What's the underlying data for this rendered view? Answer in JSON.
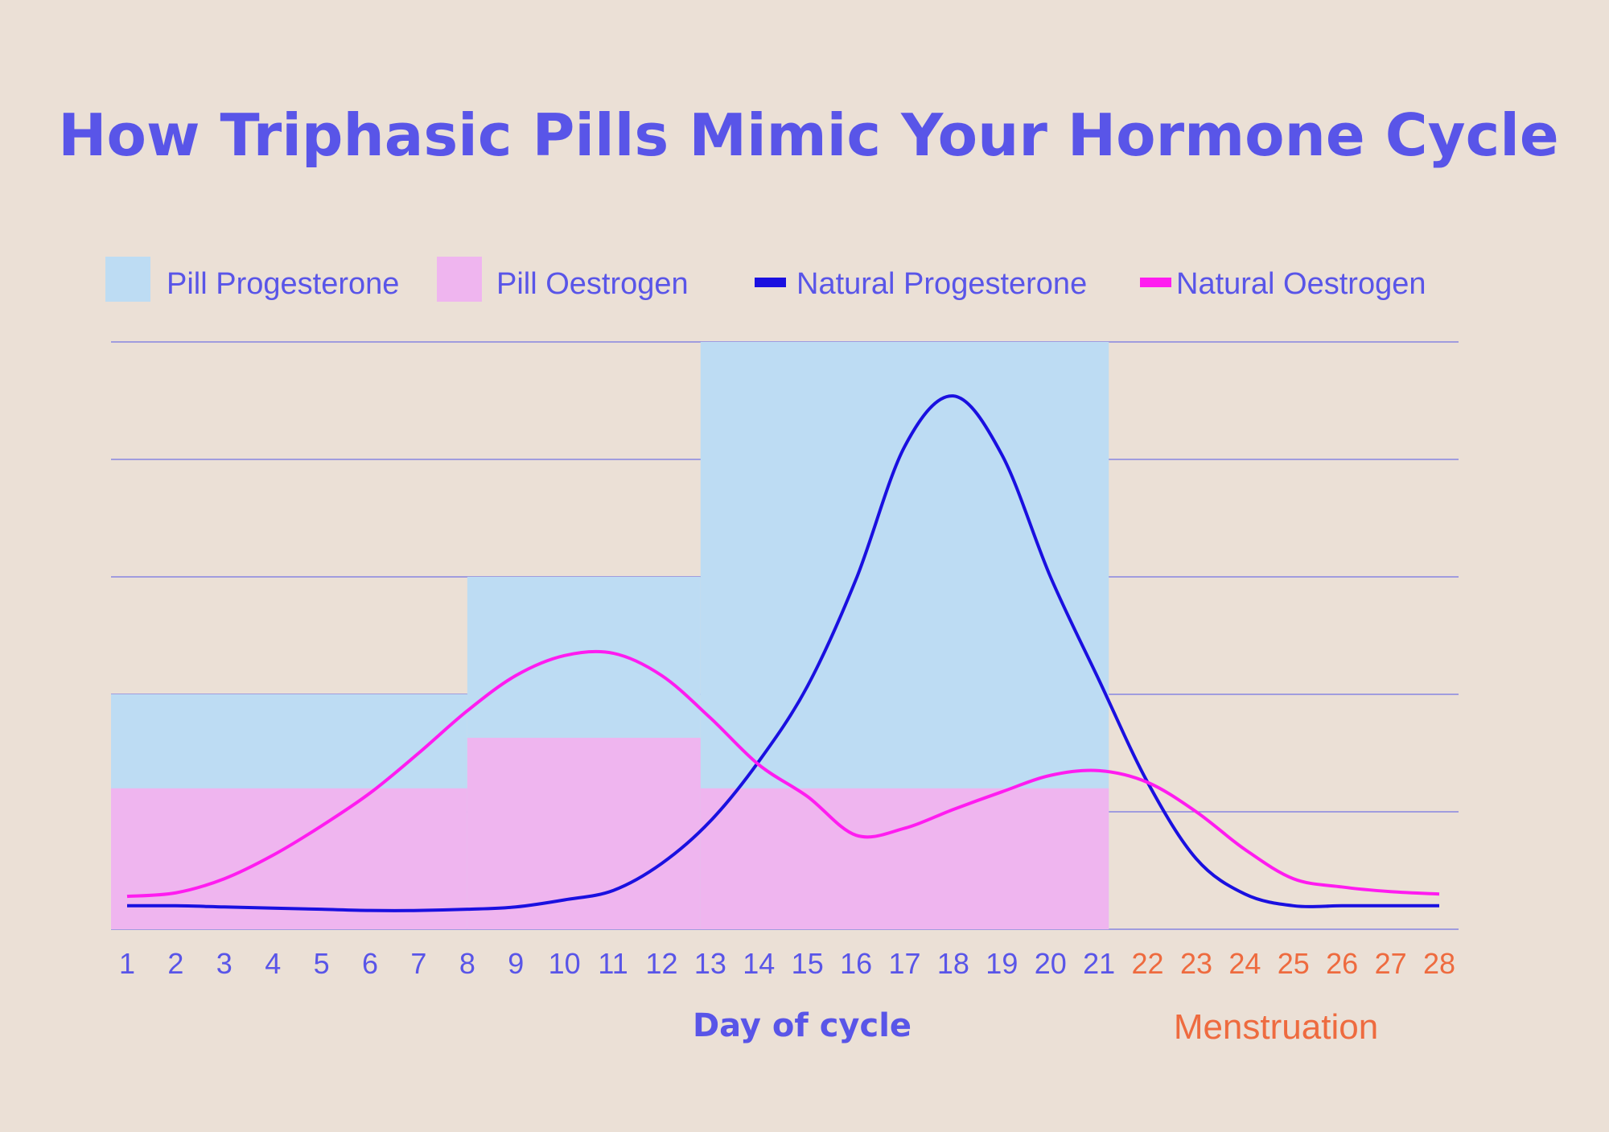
{
  "chart_data": {
    "type": "line",
    "title": "How Triphasic Pills Mimic Your Hormone Cycle",
    "xlabel": "Day of cycle",
    "menstruation_label": "Menstruation",
    "x": [
      "1",
      "2",
      "3",
      "4",
      "5",
      "6",
      "7",
      "8",
      "9",
      "10",
      "11",
      "12",
      "13",
      "14",
      "15",
      "16",
      "17",
      "18",
      "19",
      "20",
      "21",
      "22",
      "23",
      "24",
      "25",
      "26",
      "27",
      "28"
    ],
    "menstruation_days": [
      "22",
      "23",
      "24",
      "25",
      "26",
      "27",
      "28"
    ],
    "ylim": [
      0,
      5
    ],
    "grid": true,
    "legend_placement": "top",
    "legend": [
      {
        "label": "Pill Progesterone",
        "kind": "box",
        "color": "#bddcf3"
      },
      {
        "label": "Pill Oestrogen",
        "kind": "box",
        "color": "#efb5ef"
      },
      {
        "label": "Natural Progesterone",
        "kind": "line",
        "color": "#1a10e0"
      },
      {
        "label": "Natural Oestrogen",
        "kind": "line",
        "color": "#ff1cf0"
      }
    ],
    "pill_progesterone": [
      {
        "from_day": 1,
        "to_day": 8,
        "level": 2.0
      },
      {
        "from_day": 8,
        "to_day": 12.8,
        "level": 3.0
      },
      {
        "from_day": 12.8,
        "to_day": 21.2,
        "level": 5.0
      }
    ],
    "pill_oestrogen": [
      {
        "from_day": 1,
        "to_day": 8,
        "level": 1.2
      },
      {
        "from_day": 8,
        "to_day": 12.8,
        "level": 1.63
      },
      {
        "from_day": 12.8,
        "to_day": 21.2,
        "level": 1.2
      }
    ],
    "series": [
      {
        "name": "Natural Progesterone",
        "color": "#1a10e0",
        "points": [
          [
            1,
            0.2
          ],
          [
            2,
            0.2
          ],
          [
            3,
            0.19
          ],
          [
            4,
            0.18
          ],
          [
            5,
            0.17
          ],
          [
            6,
            0.16
          ],
          [
            7,
            0.16
          ],
          [
            8,
            0.17
          ],
          [
            9,
            0.19
          ],
          [
            10,
            0.25
          ],
          [
            11,
            0.33
          ],
          [
            12,
            0.56
          ],
          [
            13,
            0.92
          ],
          [
            14,
            1.43
          ],
          [
            15,
            2.07
          ],
          [
            16,
            2.98
          ],
          [
            17,
            4.11
          ],
          [
            18,
            4.54
          ],
          [
            19,
            4.04
          ],
          [
            20,
            3.0
          ],
          [
            21,
            2.12
          ],
          [
            22,
            1.25
          ],
          [
            23,
            0.6
          ],
          [
            24,
            0.3
          ],
          [
            25,
            0.2
          ],
          [
            26,
            0.2
          ],
          [
            27,
            0.2
          ],
          [
            28,
            0.2
          ]
        ]
      },
      {
        "name": "Natural Oestrogen",
        "color": "#ff1cf0",
        "points": [
          [
            1,
            0.28
          ],
          [
            2,
            0.31
          ],
          [
            3,
            0.43
          ],
          [
            4,
            0.63
          ],
          [
            5,
            0.88
          ],
          [
            6,
            1.16
          ],
          [
            7,
            1.5
          ],
          [
            8,
            1.86
          ],
          [
            9,
            2.16
          ],
          [
            10,
            2.33
          ],
          [
            11,
            2.35
          ],
          [
            12,
            2.16
          ],
          [
            13,
            1.8
          ],
          [
            14,
            1.4
          ],
          [
            15,
            1.13
          ],
          [
            16,
            0.8
          ],
          [
            17,
            0.86
          ],
          [
            18,
            1.02
          ],
          [
            19,
            1.17
          ],
          [
            20,
            1.31
          ],
          [
            21,
            1.35
          ],
          [
            22,
            1.25
          ],
          [
            23,
            1.0
          ],
          [
            24,
            0.68
          ],
          [
            25,
            0.43
          ],
          [
            26,
            0.36
          ],
          [
            27,
            0.32
          ],
          [
            28,
            0.3
          ]
        ]
      }
    ]
  }
}
